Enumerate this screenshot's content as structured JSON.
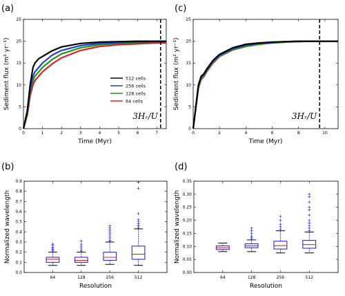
{
  "panels": {
    "a": "(a)",
    "b": "(b)",
    "c": "(c)",
    "d": "(d)"
  },
  "chart_data": [
    {
      "id": "a",
      "type": "line",
      "xlabel": "Time (Myr)",
      "ylabel": "Sediment flux  (m² yr⁻¹)",
      "xlim": [
        0,
        7.5
      ],
      "ylim": [
        0,
        25
      ],
      "xticks": [
        0,
        1,
        2,
        3,
        4,
        5,
        6,
        7
      ],
      "yticks": [
        0,
        5,
        10,
        15,
        20,
        25
      ],
      "vline": 7.2,
      "annotation": "3Hᵣ/U",
      "legend_position": "right",
      "series": [
        {
          "name": "512 cells",
          "color": "#000000",
          "x": [
            0,
            0.2,
            0.35,
            0.5,
            0.6,
            0.8,
            1.0,
            1.5,
            2.0,
            3.0,
            4.0,
            5.0,
            6.0,
            7.0,
            7.5
          ],
          "y": [
            0,
            4,
            10,
            14,
            15,
            16,
            16.5,
            17.8,
            18.7,
            19.5,
            19.8,
            19.9,
            20.0,
            20.0,
            20.0
          ]
        },
        {
          "name": "256 cells",
          "color": "#1f3fd6",
          "x": [
            0,
            0.2,
            0.35,
            0.5,
            0.6,
            0.8,
            1.0,
            1.5,
            2.0,
            3.0,
            4.0,
            5.0,
            6.0,
            7.0,
            7.5
          ],
          "y": [
            0,
            4,
            9,
            12,
            13,
            14,
            15,
            16.8,
            17.9,
            19.0,
            19.5,
            19.7,
            19.8,
            19.9,
            19.9
          ]
        },
        {
          "name": "128 cells",
          "color": "#1a9a1a",
          "x": [
            0,
            0.2,
            0.35,
            0.5,
            0.6,
            0.8,
            1.0,
            1.5,
            2.0,
            3.0,
            4.0,
            5.0,
            6.0,
            7.0,
            7.5
          ],
          "y": [
            0,
            3.5,
            8.5,
            11,
            12,
            13,
            14,
            15.8,
            17.1,
            18.5,
            19.2,
            19.5,
            19.7,
            19.8,
            19.8
          ]
        },
        {
          "name": "64 cells",
          "color": "#e02020",
          "x": [
            0,
            0.2,
            0.35,
            0.5,
            0.6,
            0.8,
            1.0,
            1.5,
            2.0,
            3.0,
            4.0,
            5.0,
            6.0,
            7.0,
            7.5
          ],
          "y": [
            0,
            3,
            7.5,
            10,
            11,
            12,
            13,
            14.8,
            16.2,
            17.9,
            18.8,
            19.2,
            19.4,
            19.6,
            19.6
          ]
        }
      ]
    },
    {
      "id": "c",
      "type": "line",
      "xlabel": "Time (Myr)",
      "ylabel": "Sediment flux  (m² yr⁻¹)",
      "xlim": [
        0,
        11
      ],
      "ylim": [
        0,
        25
      ],
      "xticks": [
        0,
        2,
        4,
        6,
        8,
        10
      ],
      "yticks": [
        0,
        5,
        10,
        15,
        20,
        25
      ],
      "vline": 9.6,
      "annotation": "3Hᵣ/U",
      "series": [
        {
          "color": "#000000",
          "x": [
            0,
            0.2,
            0.4,
            0.6,
            0.8,
            1.0,
            1.5,
            2.0,
            3.0,
            4.0,
            5.0,
            6.0,
            7.0,
            8.0,
            9.0,
            10.0,
            11.0
          ],
          "y": [
            0,
            5,
            10,
            12,
            12.5,
            13.5,
            15.6,
            17.0,
            18.5,
            19.3,
            19.6,
            19.8,
            19.9,
            20.0,
            20.0,
            20.0,
            20.0
          ]
        },
        {
          "color": "#1f3fd6",
          "x": [
            0,
            0.2,
            0.4,
            0.6,
            0.8,
            1.0,
            1.5,
            2.0,
            3.0,
            4.0,
            5.0,
            6.0,
            7.0,
            8.0,
            9.0,
            10.0,
            11.0
          ],
          "y": [
            0,
            5,
            10,
            11.8,
            12.3,
            13.3,
            15.4,
            16.8,
            18.3,
            19.1,
            19.5,
            19.7,
            19.9,
            20.0,
            20.0,
            20.0,
            20.0
          ]
        },
        {
          "color": "#1a9a1a",
          "x": [
            0,
            0.2,
            0.4,
            0.6,
            0.8,
            1.0,
            1.5,
            2.0,
            3.0,
            4.0,
            5.0,
            6.0,
            7.0,
            8.0,
            9.0,
            10.0,
            11.0
          ],
          "y": [
            0,
            4.8,
            9.6,
            11.5,
            12.1,
            13.1,
            15.2,
            16.6,
            18.1,
            18.9,
            19.3,
            19.6,
            19.8,
            19.9,
            20.0,
            20.0,
            20.0
          ]
        },
        {
          "color": "#e02020",
          "x": [
            0,
            0.2,
            0.4,
            0.6,
            0.8,
            1.0,
            1.5,
            2.0,
            3.0,
            4.0,
            5.0,
            6.0,
            7.0,
            8.0,
            9.0,
            10.0,
            11.0
          ],
          "y": [
            0,
            4.6,
            9.3,
            11.2,
            11.9,
            12.9,
            15.0,
            16.5,
            18.0,
            18.8,
            19.3,
            19.6,
            19.8,
            19.9,
            20.0,
            20.0,
            20.0
          ]
        }
      ]
    },
    {
      "id": "b",
      "type": "box",
      "xlabel": "Resolution",
      "ylabel": "Normalized  wavelength",
      "ylim": [
        0,
        0.9
      ],
      "yticks": [
        0.0,
        0.1,
        0.2,
        0.3,
        0.4,
        0.5,
        0.6,
        0.7,
        0.8,
        0.9
      ],
      "ytick_labels": [
        "0.0",
        "0.1",
        "0.2",
        "0.3",
        "0.4",
        "0.5",
        "0.6",
        "0.7",
        "0.8",
        "0.9"
      ],
      "categories": [
        "64",
        "128",
        "256",
        "512"
      ],
      "boxes": [
        {
          "whislo": 0.07,
          "q1": 0.1,
          "med": 0.13,
          "q3": 0.15,
          "whishi": 0.2,
          "fliers": [
            0.21,
            0.22,
            0.23,
            0.24,
            0.25,
            0.27,
            0.28
          ]
        },
        {
          "whislo": 0.07,
          "q1": 0.1,
          "med": 0.12,
          "q3": 0.15,
          "whishi": 0.2,
          "fliers": [
            0.21,
            0.22,
            0.24,
            0.26,
            0.28,
            0.31
          ]
        },
        {
          "whislo": 0.08,
          "q1": 0.12,
          "med": 0.15,
          "q3": 0.2,
          "whishi": 0.3,
          "fliers": [
            0.31,
            0.32,
            0.34,
            0.36,
            0.38,
            0.4,
            0.42,
            0.44,
            0.46
          ]
        },
        {
          "whislo": 0.07,
          "q1": 0.13,
          "med": 0.18,
          "q3": 0.26,
          "whishi": 0.43,
          "fliers": [
            0.44,
            0.46,
            0.48,
            0.5,
            0.52,
            0.58,
            0.83,
            0.89
          ]
        }
      ]
    },
    {
      "id": "d",
      "type": "box",
      "xlabel": "Resolution",
      "ylabel": "Normalized  wavelength",
      "ylim": [
        0,
        0.35
      ],
      "yticks": [
        0.0,
        0.05,
        0.1,
        0.15,
        0.2,
        0.25,
        0.3,
        0.35
      ],
      "ytick_labels": [
        "0.00",
        "0.05",
        "0.10",
        "0.15",
        "0.20",
        "0.25",
        "0.30",
        "0.35"
      ],
      "categories": [
        "64",
        "128",
        "256",
        "512"
      ],
      "boxes": [
        {
          "whislo": 0.08,
          "q1": 0.088,
          "med": 0.095,
          "q3": 0.102,
          "whishi": 0.113,
          "fliers": []
        },
        {
          "whislo": 0.08,
          "q1": 0.095,
          "med": 0.102,
          "q3": 0.11,
          "whishi": 0.125,
          "fliers": [
            0.13,
            0.135,
            0.14,
            0.15,
            0.16,
            0.17
          ]
        },
        {
          "whislo": 0.075,
          "q1": 0.09,
          "med": 0.103,
          "q3": 0.12,
          "whishi": 0.16,
          "fliers": [
            0.165,
            0.175,
            0.185,
            0.2,
            0.215
          ]
        },
        {
          "whislo": 0.075,
          "q1": 0.093,
          "med": 0.107,
          "q3": 0.123,
          "whishi": 0.155,
          "fliers": [
            0.16,
            0.17,
            0.18,
            0.19,
            0.2,
            0.22,
            0.24,
            0.25,
            0.27,
            0.29,
            0.3
          ]
        }
      ]
    }
  ]
}
